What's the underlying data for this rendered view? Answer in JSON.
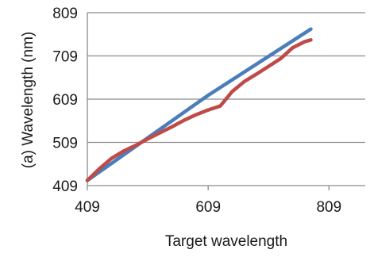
{
  "chart_data": {
    "type": "line",
    "xlabel": "Target wavelength",
    "ylabel": "(a) Wavelength (nm)",
    "xlim": [
      409,
      869
    ],
    "ylim": [
      409,
      809
    ],
    "x_ticks": [
      "409",
      "609",
      "809"
    ],
    "y_ticks": [
      "809",
      "709",
      "609",
      "509",
      "409"
    ],
    "x_tick_values": [
      409,
      609,
      809
    ],
    "y_tick_values": [
      809,
      709,
      609,
      509,
      409
    ],
    "grid": "horizontal",
    "legend": "none",
    "series": [
      {
        "color": "#4a7ebb",
        "x": [
          409,
          609,
          779
        ],
        "y": [
          421,
          618,
          771
        ]
      },
      {
        "color": "#be4b48",
        "x": [
          409,
          429,
          449,
          469,
          489,
          509,
          529,
          549,
          569,
          589,
          609,
          629,
          649,
          669,
          689,
          709,
          729,
          749,
          769,
          779
        ],
        "y": [
          421,
          448,
          472,
          489,
          502,
          517,
          531,
          545,
          560,
          573,
          584,
          593,
          627,
          650,
          667,
          685,
          703,
          728,
          742,
          746
        ]
      }
    ]
  }
}
